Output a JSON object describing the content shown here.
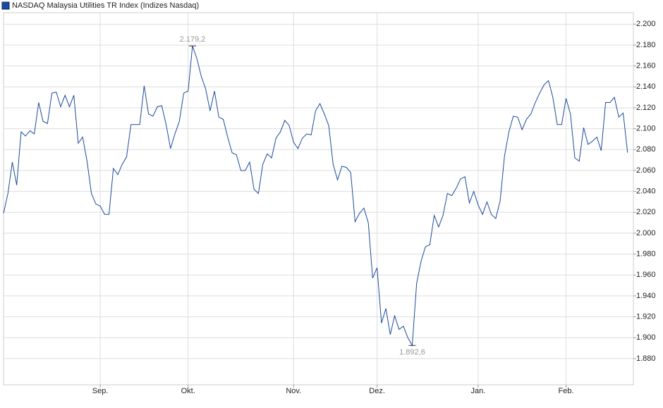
{
  "chart_data": {
    "type": "line",
    "title": "NASDAQ Malaysia Utilities TR Index  (Indizes Nasdaq)",
    "series": [
      {
        "name": "NASDAQ Malaysia Utilities TR Index",
        "color": "#1c4a9c",
        "values": [
          2.019,
          2.038,
          2.068,
          2.046,
          2.097,
          2.093,
          2.098,
          2.095,
          2.125,
          2.107,
          2.105,
          2.134,
          2.135,
          2.121,
          2.132,
          2.121,
          2.132,
          2.086,
          2.092,
          2.069,
          2.038,
          2.028,
          2.026,
          2.018,
          2.018,
          2.062,
          2.056,
          2.066,
          2.073,
          2.104,
          2.104,
          2.104,
          2.141,
          2.114,
          2.112,
          2.121,
          2.122,
          2.104,
          2.081,
          2.095,
          2.107,
          2.134,
          2.136,
          2.1792,
          2.167,
          2.15,
          2.138,
          2.117,
          2.136,
          2.111,
          2.109,
          2.092,
          2.077,
          2.075,
          2.06,
          2.06,
          2.068,
          2.042,
          2.038,
          2.066,
          2.076,
          2.072,
          2.091,
          2.097,
          2.108,
          2.103,
          2.087,
          2.081,
          2.091,
          2.095,
          2.094,
          2.117,
          2.124,
          2.114,
          2.103,
          2.066,
          2.051,
          2.064,
          2.063,
          2.058,
          2.011,
          2.019,
          2.024,
          2.01,
          1.957,
          1.967,
          1.914,
          1.928,
          1.903,
          1.921,
          1.908,
          1.911,
          1.9,
          1.8926,
          1.952,
          1.973,
          1.987,
          1.989,
          2.017,
          2.006,
          2.017,
          2.038,
          2.036,
          2.043,
          2.052,
          2.054,
          2.029,
          2.04,
          2.027,
          2.018,
          2.03,
          2.018,
          2.014,
          2.031,
          2.074,
          2.097,
          2.112,
          2.111,
          2.099,
          2.109,
          2.114,
          2.125,
          2.134,
          2.142,
          2.146,
          2.13,
          2.104,
          2.104,
          2.129,
          2.114,
          2.072,
          2.069,
          2.101,
          2.085,
          2.088,
          2.092,
          2.079,
          2.125,
          2.125,
          2.13,
          2.111,
          2.115,
          2.077
        ]
      }
    ],
    "xlim": [
      0,
      143
    ],
    "xticks": [
      {
        "value": 22,
        "label": "Sep."
      },
      {
        "value": 42,
        "label": "Okt."
      },
      {
        "value": 66,
        "label": "Nov."
      },
      {
        "value": 85,
        "label": "Dez."
      },
      {
        "value": 108,
        "label": "Jan."
      },
      {
        "value": 128,
        "label": "Feb."
      }
    ],
    "ylim": [
      1.855,
      2.211
    ],
    "yticks": [
      {
        "value": 1.88,
        "label": "1.880"
      },
      {
        "value": 1.9,
        "label": "1.900"
      },
      {
        "value": 1.92,
        "label": "1.920"
      },
      {
        "value": 1.94,
        "label": "1.940"
      },
      {
        "value": 1.96,
        "label": "1.960"
      },
      {
        "value": 1.98,
        "label": "1.980"
      },
      {
        "value": 2.0,
        "label": "2.000"
      },
      {
        "value": 2.02,
        "label": "2.020"
      },
      {
        "value": 2.04,
        "label": "2.040"
      },
      {
        "value": 2.06,
        "label": "2.060"
      },
      {
        "value": 2.08,
        "label": "2.080"
      },
      {
        "value": 2.1,
        "label": "2.100"
      },
      {
        "value": 2.12,
        "label": "2.120"
      },
      {
        "value": 2.14,
        "label": "2.140"
      },
      {
        "value": 2.16,
        "label": "2.160"
      },
      {
        "value": 2.18,
        "label": "2.180"
      },
      {
        "value": 2.2,
        "label": "2.200"
      }
    ],
    "annotations": [
      {
        "x": 43,
        "value": 2.1792,
        "label": "2.179,2",
        "position": "above"
      },
      {
        "x": 93,
        "value": 1.8926,
        "label": "1.892,6",
        "position": "below"
      }
    ],
    "grid": true
  }
}
